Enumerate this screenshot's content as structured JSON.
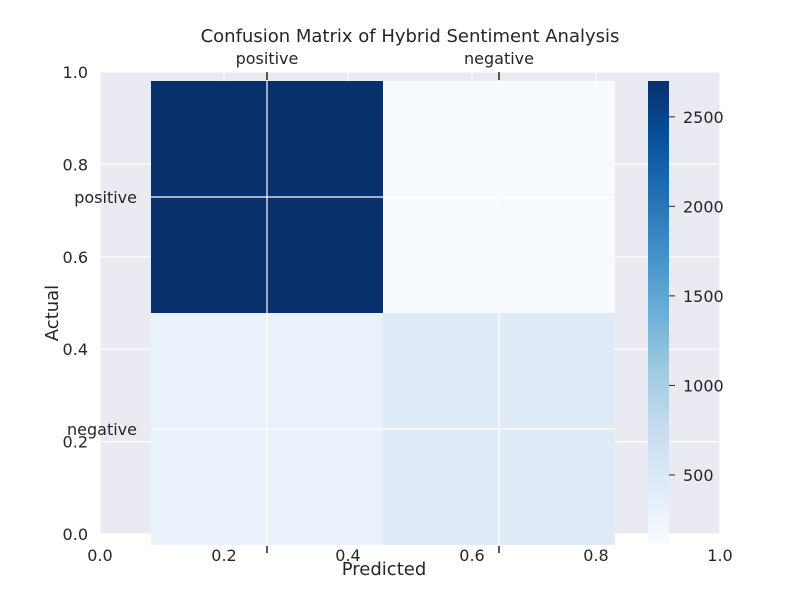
{
  "chart_data": {
    "type": "heatmap",
    "title": "Confusion Matrix of Hybrid Sentiment Analysis",
    "xlabel": "Predicted",
    "ylabel": "Actual",
    "x_categories": [
      "positive",
      "negative"
    ],
    "y_categories": [
      "positive",
      "negative"
    ],
    "matrix": [
      [
        2700,
        120
      ],
      [
        300,
        430
      ]
    ],
    "colormap": "Blues",
    "colorbar": {
      "ticks": [
        500,
        1000,
        1500,
        2000,
        2500
      ],
      "range": [
        120,
        2700
      ]
    },
    "background_axes": {
      "xlim": [
        0.0,
        1.0
      ],
      "ylim": [
        0.0,
        1.0
      ],
      "xticks": [
        "0.0",
        "0.2",
        "0.4",
        "0.6",
        "0.8",
        "1.0"
      ],
      "yticks": [
        "0.0",
        "0.2",
        "0.4",
        "0.6",
        "0.8",
        "1.0"
      ]
    },
    "grid": true,
    "colors": {
      "axes_background": "#EAEAF2",
      "grid": "#FFFFFF",
      "text": "#262626"
    }
  }
}
